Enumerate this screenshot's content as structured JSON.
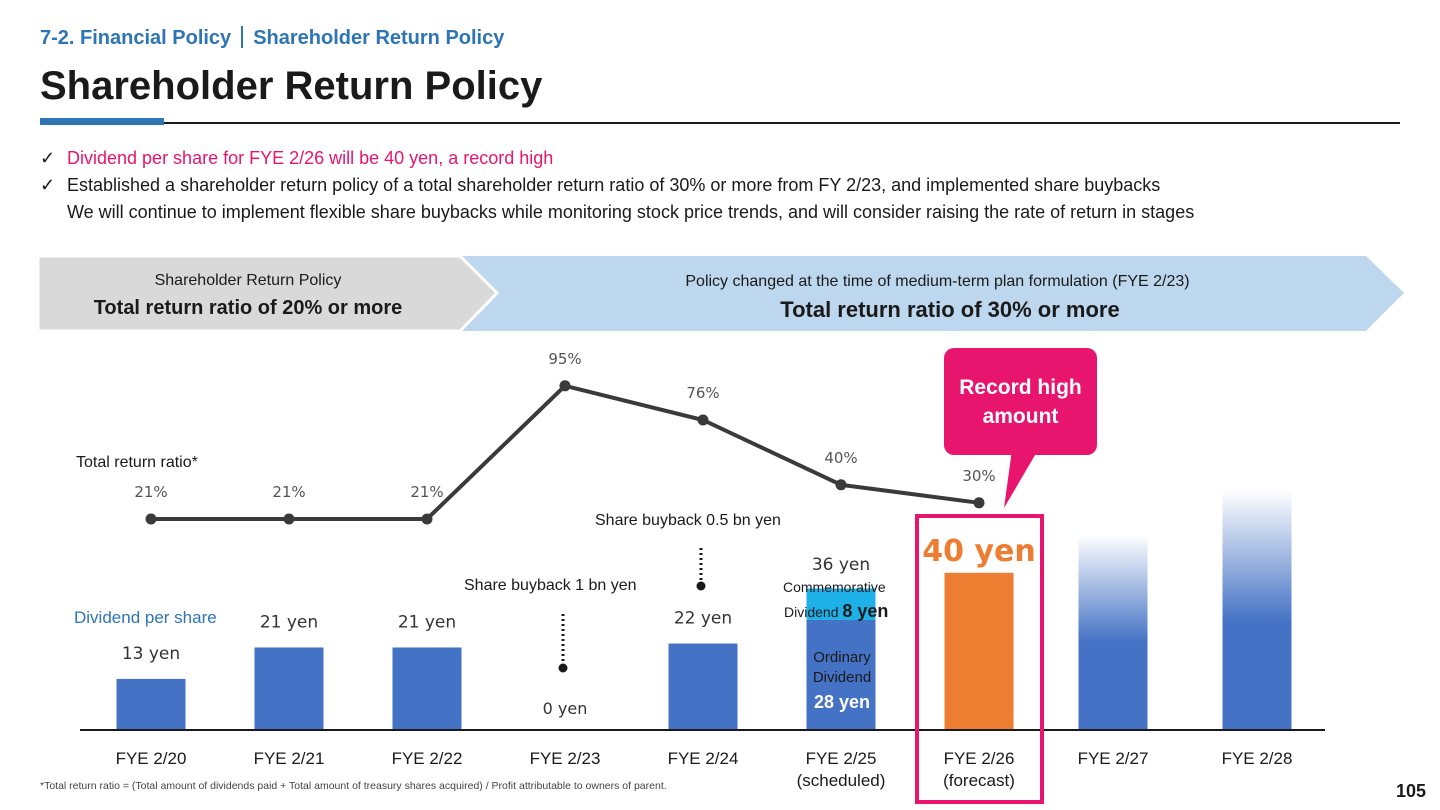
{
  "header": {
    "section": "7-2. Financial Policy",
    "subsection": "Shareholder Return Policy",
    "title": "Shareholder Return Policy",
    "page_number": "105"
  },
  "bullets": {
    "check": "✓",
    "line1": "Dividend per share for FYE 2/26 will be 40 yen, a record high",
    "line2": "Established a shareholder return policy of a total shareholder return ratio of 30% or more from FY 2/23, and implemented share buybacks",
    "line3": "We will continue to implement flexible share buybacks while monitoring stock price trends, and will consider raising the rate of return in stages"
  },
  "banner": {
    "left_caption": "Shareholder Return Policy",
    "left_policy": "Total return ratio of 20% or more",
    "right_caption": "Policy changed at the time of medium-term plan formulation (FYE 2/23)",
    "right_policy": "Total return ratio of 30% or more",
    "left_color": "#d9d9d9",
    "right_color": "#bdd7ee"
  },
  "annotations": {
    "total_return_ratio_label": "Total return ratio*",
    "dividend_label": "Dividend per share",
    "buyback_1": "Share buyback 1 bn yen",
    "buyback_2": "Share buyback 0.5 bn yen",
    "commemorative_label": "Commemorative",
    "commemorative_dividend_word": "Dividend",
    "commemorative_value": "8 yen",
    "ordinary_label_1": "Ordinary",
    "ordinary_label_2": "Dividend",
    "ordinary_value": "28 yen",
    "record_high": "Record high amount",
    "footnote": "*Total return ratio = (Total amount of dividends paid + Total amount of treasury shares acquired) / Profit attributable to owners of parent."
  },
  "x_labels": [
    {
      "line1": "FYE 2/20",
      "line2": ""
    },
    {
      "line1": "FYE 2/21",
      "line2": ""
    },
    {
      "line1": "FYE 2/22",
      "line2": ""
    },
    {
      "line1": "FYE 2/23",
      "line2": ""
    },
    {
      "line1": "FYE 2/24",
      "line2": ""
    },
    {
      "line1": "FYE 2/25",
      "line2": "(scheduled)"
    },
    {
      "line1": "FYE 2/26",
      "line2": "(forecast)"
    },
    {
      "line1": "FYE 2/27",
      "line2": ""
    },
    {
      "line1": "FYE 2/28",
      "line2": ""
    }
  ],
  "chart_data": {
    "type": "bar",
    "categories": [
      "FYE 2/20",
      "FYE 2/21",
      "FYE 2/22",
      "FYE 2/23",
      "FYE 2/24",
      "FYE 2/25",
      "FYE 2/26",
      "FYE 2/27",
      "FYE 2/28"
    ],
    "series": [
      {
        "name": "Dividend per share",
        "values": [
          13,
          21,
          21,
          0,
          22,
          36,
          40,
          null,
          null
        ],
        "labels": [
          "13 yen",
          "21 yen",
          "21 yen",
          "0 yen",
          "22 yen",
          "36 yen",
          "40 yen",
          "",
          ""
        ],
        "components_fye_2_25": {
          "ordinary": 28,
          "commemorative": 8
        }
      },
      {
        "name": "Total return ratio*",
        "type": "line",
        "values": [
          21,
          21,
          21,
          95,
          76,
          40,
          30,
          null,
          null
        ],
        "labels": [
          "21%",
          "21%",
          "21%",
          "95%",
          "76%",
          "40%",
          "30%",
          "",
          ""
        ]
      }
    ],
    "future_bars_relative_height": [
      null,
      null,
      null,
      null,
      null,
      null,
      null,
      0.52,
      0.64
    ],
    "colors": {
      "bar": "#4472c4",
      "forecast_bar": "#ed7d31",
      "commemorative": "#1eb1e8",
      "line": "#3a3a3a",
      "highlight": "#e8156e",
      "forecast_label": "#ed7d31"
    }
  }
}
